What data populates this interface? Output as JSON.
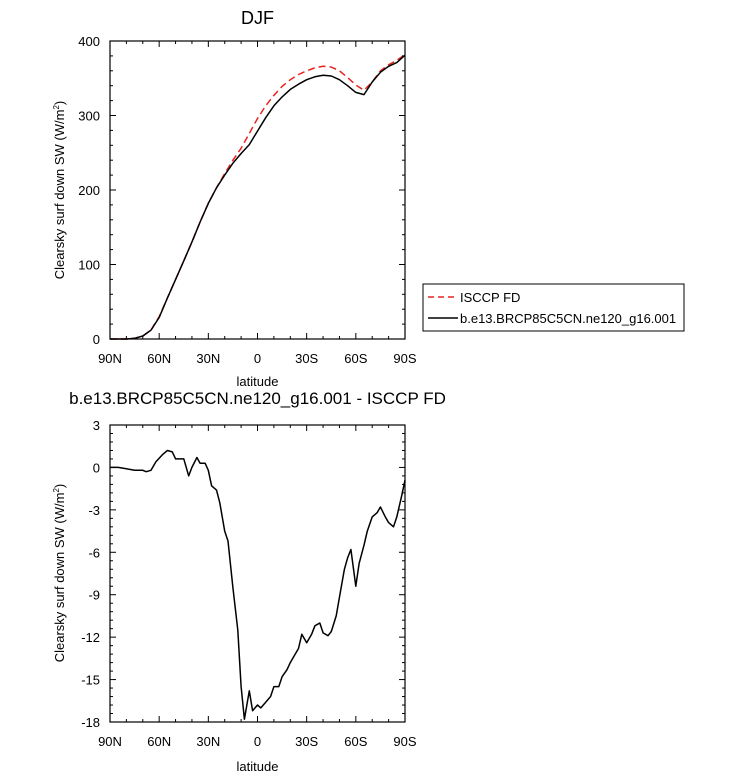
{
  "chart_data": [
    {
      "type": "line",
      "title": "DJF",
      "xlabel": "latitude",
      "ylabel": "Clearsky surf down SW (W/m",
      "ylabel_sup": "2",
      "ylabel_close": ")",
      "xlim": [
        90,
        -90
      ],
      "ylim": [
        0,
        400
      ],
      "x_ticks": [
        90,
        60,
        30,
        0,
        -30,
        -60,
        -90
      ],
      "x_tick_labels": [
        "90N",
        "60N",
        "30N",
        "0",
        "30S",
        "60S",
        "90S"
      ],
      "y_ticks": [
        0,
        100,
        200,
        300,
        400
      ],
      "y_tick_labels": [
        "0",
        "100",
        "200",
        "300",
        "400"
      ],
      "grid": false,
      "legend_position": "right",
      "series": [
        {
          "name": "ISCCP FD",
          "color": "#e8231e",
          "dash": "dashed",
          "x": [
            90,
            85,
            80,
            75,
            70,
            65,
            60,
            55,
            50,
            45,
            40,
            35,
            30,
            25,
            20,
            15,
            10,
            5,
            0,
            -5,
            -10,
            -15,
            -20,
            -25,
            -30,
            -35,
            -40,
            -45,
            -50,
            -55,
            -60,
            -65,
            -70,
            -75,
            -80,
            -85,
            -90
          ],
          "y": [
            0,
            0,
            0,
            1,
            4,
            12,
            30,
            55,
            80,
            105,
            130,
            157,
            182,
            203,
            222,
            240,
            256,
            276,
            296,
            313,
            327,
            339,
            348,
            355,
            360,
            364,
            366,
            365,
            360,
            351,
            341,
            334,
            345,
            360,
            368,
            374,
            382
          ]
        },
        {
          "name": "b.e13.BRCP85C5CN.ne120_g16.001",
          "color": "#000000",
          "dash": "solid",
          "x": [
            90,
            85,
            80,
            75,
            70,
            65,
            60,
            55,
            50,
            45,
            40,
            35,
            30,
            25,
            20,
            15,
            10,
            5,
            0,
            -5,
            -10,
            -15,
            -20,
            -25,
            -30,
            -35,
            -40,
            -45,
            -50,
            -55,
            -60,
            -65,
            -70,
            -75,
            -80,
            -85,
            -90
          ],
          "y": [
            0,
            0,
            0,
            1,
            4,
            12,
            29,
            55,
            80,
            105,
            130,
            157,
            182,
            203,
            220,
            236,
            249,
            261,
            279,
            297,
            313,
            325,
            335,
            342,
            348,
            352,
            354,
            353,
            348,
            340,
            331,
            328,
            345,
            358,
            366,
            371,
            381
          ]
        }
      ]
    },
    {
      "type": "line",
      "title": "b.e13.BRCP85C5CN.ne120_g16.001 - ISCCP FD",
      "xlabel": "latitude",
      "ylabel": "Clearsky surf down SW (W/m",
      "ylabel_sup": "2",
      "ylabel_close": ")",
      "xlim": [
        90,
        -90
      ],
      "ylim": [
        -18,
        3
      ],
      "x_ticks": [
        90,
        60,
        30,
        0,
        -30,
        -60,
        -90
      ],
      "x_tick_labels": [
        "90N",
        "60N",
        "30N",
        "0",
        "30S",
        "60S",
        "90S"
      ],
      "y_ticks": [
        3,
        0,
        -3,
        -6,
        -9,
        -12,
        -15,
        -18
      ],
      "y_tick_labels": [
        "3",
        "0",
        "-3",
        "-6",
        "-9",
        "-12",
        "-15",
        "-18"
      ],
      "grid": false,
      "series": [
        {
          "color": "#000000",
          "dash": "solid",
          "x": [
            90,
            85,
            80,
            75,
            70,
            68,
            65,
            62,
            58,
            55,
            52,
            50,
            47,
            45,
            42,
            40,
            37,
            35,
            32,
            30,
            28,
            25,
            23,
            20,
            18,
            15,
            12,
            10,
            8,
            5,
            3,
            0,
            -2,
            -5,
            -8,
            -10,
            -13,
            -15,
            -18,
            -20,
            -23,
            -25,
            -27,
            -30,
            -33,
            -35,
            -38,
            -40,
            -43,
            -45,
            -48,
            -50,
            -53,
            -55,
            -57,
            -60,
            -62,
            -65,
            -67,
            -70,
            -73,
            -75,
            -78,
            -80,
            -83,
            -85,
            -88,
            -90
          ],
          "y": [
            0,
            0,
            -0.1,
            -0.2,
            -0.2,
            -0.3,
            -0.2,
            0.4,
            0.9,
            1.2,
            1.1,
            0.6,
            0.6,
            0.6,
            -0.6,
            0,
            0.7,
            0.3,
            0.3,
            -0.2,
            -1.3,
            -1.6,
            -2.5,
            -4.5,
            -5.2,
            -8.5,
            -11.5,
            -15.5,
            -17.8,
            -15.8,
            -17.2,
            -16.8,
            -17,
            -16.6,
            -16.2,
            -15.5,
            -15.5,
            -14.8,
            -14.3,
            -13.8,
            -13.2,
            -12.8,
            -11.8,
            -12.4,
            -11.8,
            -11.2,
            -11,
            -11.7,
            -11.9,
            -11.6,
            -10.5,
            -9.2,
            -7.2,
            -6.4,
            -5.8,
            -8.4,
            -6.8,
            -5.5,
            -4.5,
            -3.5,
            -3.2,
            -2.8,
            -3.5,
            -3.9,
            -4.2,
            -3.5,
            -2,
            -0.9
          ]
        }
      ]
    }
  ]
}
